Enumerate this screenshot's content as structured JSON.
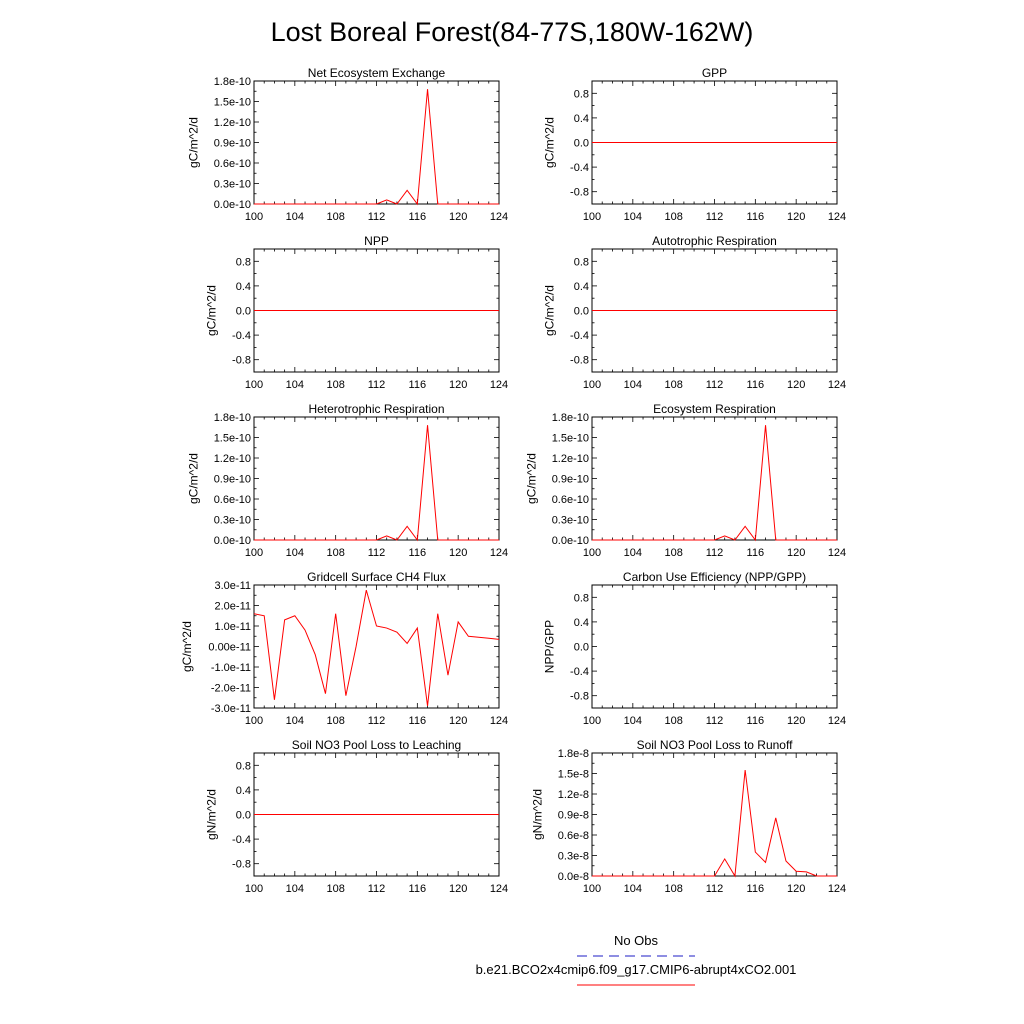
{
  "page": {
    "title": "Lost Boreal Forest(84-77S,180W-162W)"
  },
  "legend": {
    "obs_label": "No Obs",
    "obs_color": "#4a4ad0",
    "model_label": "b.e21.BCO2x4cmip6.f09_g17.CMIP6-abrupt4xCO2.001",
    "model_color": "#ff0000"
  },
  "chart_data": [
    {
      "type": "line",
      "title": "Net Ecosystem Exchange",
      "ylabel": "gC/m^2/d",
      "xlabel": "",
      "x_ticks": [
        100,
        104,
        108,
        112,
        116,
        120,
        124
      ],
      "xlim": [
        100,
        124
      ],
      "ylim": [
        0,
        1.8e-10
      ],
      "y_ticks": [
        0,
        3e-11,
        6e-11,
        9e-11,
        1.2e-10,
        1.5e-10,
        1.8e-10
      ],
      "y_tick_labels": [
        "0.0e-10",
        "0.3e-10",
        "0.6e-10",
        "0.9e-10",
        "1.2e-10",
        "1.5e-10",
        "1.8e-10"
      ],
      "series": [
        {
          "name": "b.e21.BCO2x4cmip6.f09_g17.CMIP6-abrupt4xCO2.001",
          "x": [
            100,
            101,
            102,
            103,
            104,
            105,
            106,
            107,
            108,
            109,
            110,
            111,
            112,
            113,
            114,
            115,
            116,
            117,
            118,
            119,
            120,
            121,
            122,
            123,
            124
          ],
          "values": [
            0,
            0,
            0,
            0,
            0,
            0,
            0,
            0,
            0,
            0,
            0,
            0,
            0,
            6e-12,
            0,
            2e-11,
            0,
            1.68e-10,
            0,
            0,
            0,
            0,
            0,
            0,
            0
          ]
        }
      ]
    },
    {
      "type": "line",
      "title": "GPP",
      "ylabel": "gC/m^2/d",
      "xlabel": "",
      "x_ticks": [
        100,
        104,
        108,
        112,
        116,
        120,
        124
      ],
      "xlim": [
        100,
        124
      ],
      "ylim": [
        -1,
        1
      ],
      "y_ticks": [
        -0.8,
        -0.4,
        0,
        0.4,
        0.8
      ],
      "y_tick_labels": [
        "-0.8",
        "-0.4",
        "0.0",
        "0.4",
        "0.8"
      ],
      "series": [
        {
          "name": "b.e21.BCO2x4cmip6.f09_g17.CMIP6-abrupt4xCO2.001",
          "x": [
            100,
            124
          ],
          "values": [
            0,
            0
          ]
        }
      ]
    },
    {
      "type": "line",
      "title": "NPP",
      "ylabel": "gC/m^2/d",
      "xlabel": "",
      "x_ticks": [
        100,
        104,
        108,
        112,
        116,
        120,
        124
      ],
      "xlim": [
        100,
        124
      ],
      "ylim": [
        -1,
        1
      ],
      "y_ticks": [
        -0.8,
        -0.4,
        0,
        0.4,
        0.8
      ],
      "y_tick_labels": [
        "-0.8",
        "-0.4",
        "0.0",
        "0.4",
        "0.8"
      ],
      "series": [
        {
          "name": "b.e21.BCO2x4cmip6.f09_g17.CMIP6-abrupt4xCO2.001",
          "x": [
            100,
            124
          ],
          "values": [
            0,
            0
          ]
        }
      ]
    },
    {
      "type": "line",
      "title": "Autotrophic Respiration",
      "ylabel": "gC/m^2/d",
      "xlabel": "",
      "x_ticks": [
        100,
        104,
        108,
        112,
        116,
        120,
        124
      ],
      "xlim": [
        100,
        124
      ],
      "ylim": [
        -1,
        1
      ],
      "y_ticks": [
        -0.8,
        -0.4,
        0,
        0.4,
        0.8
      ],
      "y_tick_labels": [
        "-0.8",
        "-0.4",
        "0.0",
        "0.4",
        "0.8"
      ],
      "series": [
        {
          "name": "b.e21.BCO2x4cmip6.f09_g17.CMIP6-abrupt4xCO2.001",
          "x": [
            100,
            124
          ],
          "values": [
            0,
            0
          ]
        }
      ]
    },
    {
      "type": "line",
      "title": "Heterotrophic Respiration",
      "ylabel": "gC/m^2/d",
      "xlabel": "",
      "x_ticks": [
        100,
        104,
        108,
        112,
        116,
        120,
        124
      ],
      "xlim": [
        100,
        124
      ],
      "ylim": [
        0,
        1.8e-10
      ],
      "y_ticks": [
        0,
        3e-11,
        6e-11,
        9e-11,
        1.2e-10,
        1.5e-10,
        1.8e-10
      ],
      "y_tick_labels": [
        "0.0e-10",
        "0.3e-10",
        "0.6e-10",
        "0.9e-10",
        "1.2e-10",
        "1.5e-10",
        "1.8e-10"
      ],
      "series": [
        {
          "name": "b.e21.BCO2x4cmip6.f09_g17.CMIP6-abrupt4xCO2.001",
          "x": [
            100,
            101,
            102,
            103,
            104,
            105,
            106,
            107,
            108,
            109,
            110,
            111,
            112,
            113,
            114,
            115,
            116,
            117,
            118,
            119,
            120,
            121,
            122,
            123,
            124
          ],
          "values": [
            0,
            0,
            0,
            0,
            0,
            0,
            0,
            0,
            0,
            0,
            0,
            0,
            0,
            6e-12,
            0,
            2e-11,
            0,
            1.68e-10,
            0,
            0,
            0,
            0,
            0,
            0,
            0
          ]
        }
      ]
    },
    {
      "type": "line",
      "title": "Ecosystem Respiration",
      "ylabel": "gC/m^2/d",
      "xlabel": "",
      "x_ticks": [
        100,
        104,
        108,
        112,
        116,
        120,
        124
      ],
      "xlim": [
        100,
        124
      ],
      "ylim": [
        0,
        1.8e-10
      ],
      "y_ticks": [
        0,
        3e-11,
        6e-11,
        9e-11,
        1.2e-10,
        1.5e-10,
        1.8e-10
      ],
      "y_tick_labels": [
        "0.0e-10",
        "0.3e-10",
        "0.6e-10",
        "0.9e-10",
        "1.2e-10",
        "1.5e-10",
        "1.8e-10"
      ],
      "series": [
        {
          "name": "b.e21.BCO2x4cmip6.f09_g17.CMIP6-abrupt4xCO2.001",
          "x": [
            100,
            101,
            102,
            103,
            104,
            105,
            106,
            107,
            108,
            109,
            110,
            111,
            112,
            113,
            114,
            115,
            116,
            117,
            118,
            119,
            120,
            121,
            122,
            123,
            124
          ],
          "values": [
            0,
            0,
            0,
            0,
            0,
            0,
            0,
            0,
            0,
            0,
            0,
            0,
            0,
            6e-12,
            0,
            2e-11,
            0,
            1.68e-10,
            0,
            0,
            0,
            0,
            0,
            0,
            0
          ]
        }
      ]
    },
    {
      "type": "line",
      "title": "Gridcell Surface CH4 Flux",
      "ylabel": "gC/m^2/d",
      "xlabel": "",
      "x_ticks": [
        100,
        104,
        108,
        112,
        116,
        120,
        124
      ],
      "xlim": [
        100,
        124
      ],
      "ylim": [
        -3e-11,
        3e-11
      ],
      "y_ticks": [
        -3e-11,
        -2e-11,
        -1e-11,
        0,
        1e-11,
        2e-11,
        3e-11
      ],
      "y_tick_labels": [
        "-3.0e-11",
        "-2.0e-11",
        "-1.0e-11",
        "0.00e-11",
        "1.0e-11",
        "2.0e-11",
        "3.0e-11"
      ],
      "series": [
        {
          "name": "b.e21.BCO2x4cmip6.f09_g17.CMIP6-abrupt4xCO2.001",
          "x": [
            100,
            101,
            102,
            103,
            104,
            105,
            106,
            107,
            108,
            109,
            110,
            111,
            112,
            113,
            114,
            115,
            116,
            117,
            118,
            119,
            120,
            121,
            122,
            123,
            124
          ],
          "values": [
            1.6e-11,
            1.5e-11,
            -2.6e-11,
            1.3e-11,
            1.5e-11,
            8e-12,
            -4e-12,
            -2.3e-11,
            1.6e-11,
            -2.4e-11,
            0.0,
            2.75e-11,
            1e-11,
            9e-12,
            7e-12,
            1.5e-12,
            9e-12,
            -2.9e-11,
            1.6e-11,
            -1.4e-11,
            1.2e-11,
            5e-12,
            4.5e-12,
            4e-12,
            3.5e-12
          ]
        }
      ]
    },
    {
      "type": "line",
      "title": "Carbon Use Efficiency (NPP/GPP)",
      "ylabel": "NPP/GPP",
      "xlabel": "",
      "x_ticks": [
        100,
        104,
        108,
        112,
        116,
        120,
        124
      ],
      "xlim": [
        100,
        124
      ],
      "ylim": [
        -1,
        1
      ],
      "y_ticks": [
        -0.8,
        -0.4,
        0,
        0.4,
        0.8
      ],
      "y_tick_labels": [
        "-0.8",
        "-0.4",
        "0.0",
        "0.4",
        "0.8"
      ],
      "series": []
    },
    {
      "type": "line",
      "title": "Soil NO3 Pool Loss to Leaching",
      "ylabel": "gN/m^2/d",
      "xlabel": "",
      "x_ticks": [
        100,
        104,
        108,
        112,
        116,
        120,
        124
      ],
      "xlim": [
        100,
        124
      ],
      "ylim": [
        -1,
        1
      ],
      "y_ticks": [
        -0.8,
        -0.4,
        0,
        0.4,
        0.8
      ],
      "y_tick_labels": [
        "-0.8",
        "-0.4",
        "0.0",
        "0.4",
        "0.8"
      ],
      "series": [
        {
          "name": "b.e21.BCO2x4cmip6.f09_g17.CMIP6-abrupt4xCO2.001",
          "x": [
            100,
            124
          ],
          "values": [
            0,
            0
          ]
        }
      ]
    },
    {
      "type": "line",
      "title": "Soil NO3 Pool Loss to Runoff",
      "ylabel": "gN/m^2/d",
      "xlabel": "",
      "x_ticks": [
        100,
        104,
        108,
        112,
        116,
        120,
        124
      ],
      "xlim": [
        100,
        124
      ],
      "ylim": [
        0,
        1.8e-08
      ],
      "y_ticks": [
        0,
        3e-09,
        6e-09,
        9e-09,
        1.2e-08,
        1.5e-08,
        1.8e-08
      ],
      "y_tick_labels": [
        "0.0e-8",
        "0.3e-8",
        "0.6e-8",
        "0.9e-8",
        "1.2e-8",
        "1.5e-8",
        "1.8e-8"
      ],
      "series": [
        {
          "name": "b.e21.BCO2x4cmip6.f09_g17.CMIP6-abrupt4xCO2.001",
          "x": [
            100,
            101,
            102,
            103,
            104,
            105,
            106,
            107,
            108,
            109,
            110,
            111,
            112,
            113,
            114,
            115,
            116,
            117,
            118,
            119,
            120,
            121,
            122,
            123,
            124
          ],
          "values": [
            0,
            0,
            0,
            0,
            0,
            0,
            0,
            0,
            0,
            0,
            0,
            0,
            0,
            2.5e-09,
            0,
            1.55e-08,
            3.5e-09,
            2e-09,
            8.5e-09,
            2.2e-09,
            7e-10,
            6e-10,
            0,
            0,
            0
          ]
        }
      ]
    }
  ]
}
